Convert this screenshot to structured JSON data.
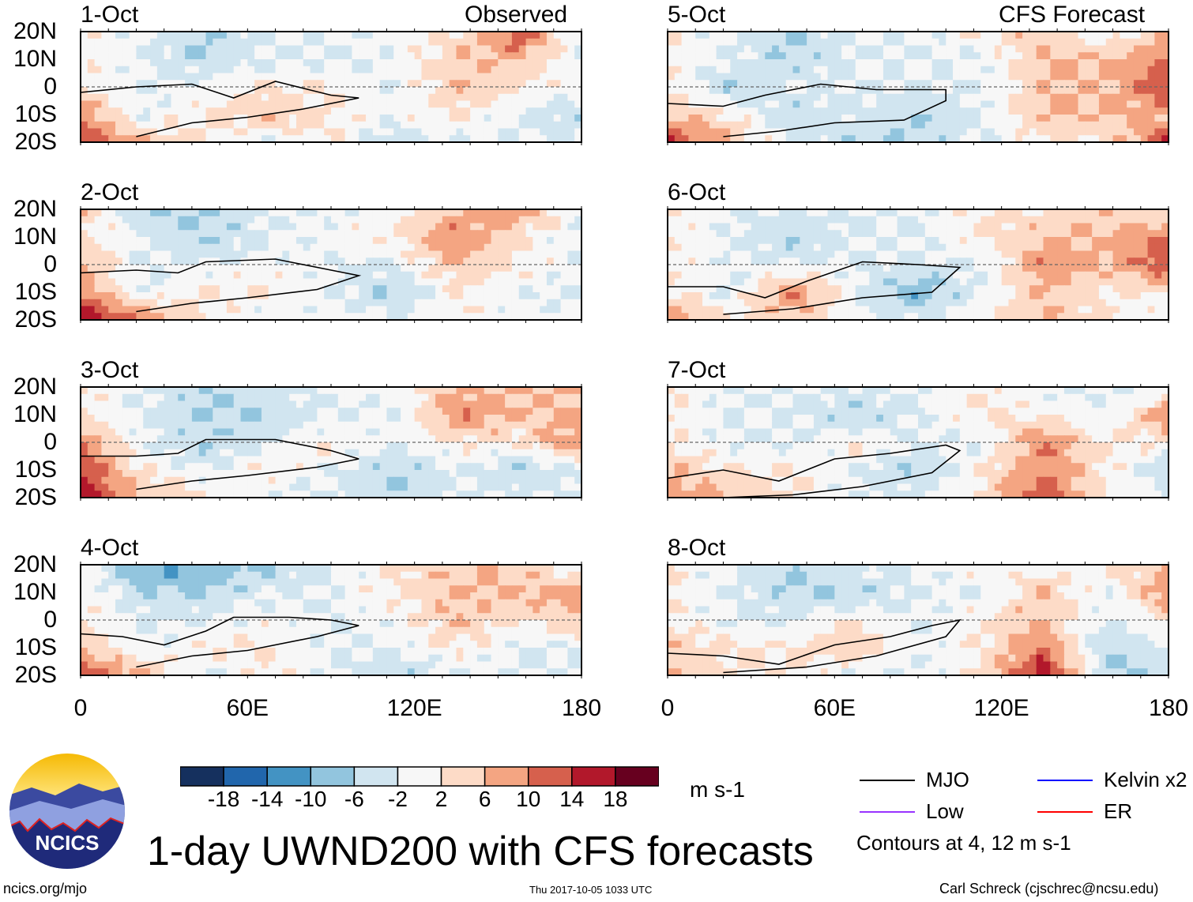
{
  "labels": {
    "observed": "Observed",
    "forecast": "CFS Forecast",
    "units": "m s-1",
    "title": "1-day UWND200 with CFS forecasts",
    "url": "ncics.org/mjo",
    "timestamp": "Thu 2017-10-05 1033 UTC",
    "author": "Carl Schreck (cjschrec@ncsu.edu)",
    "logo_text": "NCICS",
    "contour_note": "Contours at 4, 12 m s-1"
  },
  "legend": [
    {
      "label": "MJO",
      "color": "#000000"
    },
    {
      "label": "Kelvin x2",
      "color": "#0000ff"
    },
    {
      "label": "Low",
      "color": "#9933ff"
    },
    {
      "label": "ER",
      "color": "#ff0000"
    }
  ],
  "chart_data": {
    "type": "heatmap",
    "title": "1-day UWND200 with CFS forecasts",
    "units": "m s-1",
    "lat_labels": [
      "20N",
      "10N",
      "0",
      "10S",
      "20S"
    ],
    "lat_values": [
      20,
      10,
      0,
      -10,
      -20
    ],
    "lon_labels": [
      "0",
      "60E",
      "120E",
      "180"
    ],
    "lon_values": [
      0,
      22.5,
      45,
      67.5,
      90,
      112.5,
      135,
      157.5,
      180
    ],
    "xlim": [
      0,
      180
    ],
    "ylim": [
      -20,
      20
    ],
    "colorbar": {
      "ticks": [
        "-18",
        "-14",
        "-10",
        "-6",
        "-2",
        "2",
        "6",
        "10",
        "14",
        "18"
      ],
      "bounds": [
        -18,
        -14,
        -10,
        -6,
        -2,
        2,
        6,
        10,
        14,
        18
      ],
      "colors": [
        "#15305e",
        "#2166ac",
        "#4393c3",
        "#92c5de",
        "#d1e5f0",
        "#f7f7f7",
        "#fddbc7",
        "#f4a582",
        "#d6604d",
        "#b2182b",
        "#67001f"
      ]
    },
    "panels": [
      {
        "date": "1-Oct",
        "col": 0,
        "row": 0,
        "grid": [
          [
            2,
            -2,
            -6,
            -2,
            -2,
            0,
            2,
            14,
            -2
          ],
          [
            2,
            -2,
            -6,
            -2,
            -2,
            -2,
            6,
            6,
            -2
          ],
          [
            2,
            -2,
            0,
            2,
            2,
            -2,
            6,
            2,
            0
          ],
          [
            10,
            -2,
            2,
            6,
            2,
            0,
            2,
            -2,
            -6
          ],
          [
            14,
            6,
            2,
            -2,
            2,
            -6,
            -2,
            -2,
            -2
          ]
        ],
        "mjo": [
          [
            0,
            -2
          ],
          [
            20,
            0
          ],
          [
            40,
            1
          ],
          [
            55,
            -4
          ],
          [
            70,
            2
          ],
          [
            90,
            -3
          ],
          [
            100,
            -4
          ],
          [
            80,
            -8
          ],
          [
            60,
            -11
          ],
          [
            40,
            -13
          ],
          [
            20,
            -18
          ]
        ]
      },
      {
        "date": "2-Oct",
        "col": 0,
        "row": 1,
        "grid": [
          [
            6,
            -6,
            -6,
            -2,
            -2,
            0,
            6,
            10,
            -2
          ],
          [
            2,
            -2,
            -6,
            -2,
            0,
            2,
            10,
            2,
            -2
          ],
          [
            6,
            -2,
            -2,
            0,
            -2,
            -2,
            6,
            2,
            -2
          ],
          [
            10,
            -2,
            2,
            2,
            -2,
            -6,
            2,
            -2,
            -2
          ],
          [
            18,
            10,
            2,
            -2,
            0,
            -2,
            2,
            0,
            -2
          ]
        ],
        "mjo": [
          [
            0,
            -3
          ],
          [
            20,
            -2
          ],
          [
            35,
            -3
          ],
          [
            45,
            1
          ],
          [
            70,
            2
          ],
          [
            90,
            -2
          ],
          [
            100,
            -4
          ],
          [
            85,
            -9
          ],
          [
            60,
            -12
          ],
          [
            40,
            -14
          ],
          [
            20,
            -17
          ]
        ]
      },
      {
        "date": "3-Oct",
        "col": 0,
        "row": 2,
        "grid": [
          [
            2,
            -2,
            -6,
            -2,
            -2,
            0,
            6,
            6,
            6
          ],
          [
            2,
            -2,
            -6,
            -6,
            -2,
            -2,
            10,
            6,
            6
          ],
          [
            10,
            -2,
            -6,
            -2,
            2,
            -2,
            2,
            2,
            10
          ],
          [
            14,
            2,
            -2,
            2,
            -2,
            -6,
            -2,
            -6,
            -2
          ],
          [
            18,
            6,
            2,
            -2,
            -2,
            -6,
            -2,
            -2,
            -2
          ]
        ],
        "mjo": [
          [
            0,
            -5
          ],
          [
            20,
            -5
          ],
          [
            35,
            -4
          ],
          [
            45,
            1
          ],
          [
            70,
            1
          ],
          [
            90,
            -3
          ],
          [
            100,
            -6
          ],
          [
            85,
            -9
          ],
          [
            60,
            -12
          ],
          [
            40,
            -14
          ],
          [
            20,
            -17
          ]
        ]
      },
      {
        "date": "4-Oct",
        "col": 0,
        "row": 3,
        "grid": [
          [
            0,
            -10,
            -10,
            -6,
            -2,
            2,
            6,
            6,
            -2
          ],
          [
            2,
            -6,
            -6,
            -2,
            -2,
            2,
            6,
            6,
            10
          ],
          [
            2,
            -2,
            -2,
            0,
            -2,
            0,
            6,
            2,
            6
          ],
          [
            6,
            -2,
            2,
            2,
            -2,
            -2,
            2,
            -2,
            -2
          ],
          [
            14,
            6,
            -2,
            2,
            -2,
            -6,
            -2,
            -2,
            -2
          ]
        ],
        "mjo": [
          [
            0,
            -5
          ],
          [
            15,
            -6
          ],
          [
            30,
            -9
          ],
          [
            45,
            -4
          ],
          [
            55,
            1
          ],
          [
            75,
            1
          ],
          [
            90,
            0
          ],
          [
            100,
            -2
          ],
          [
            85,
            -6
          ],
          [
            60,
            -11
          ],
          [
            40,
            -13
          ],
          [
            20,
            -17
          ]
        ]
      },
      {
        "date": "5-Oct",
        "col": 1,
        "row": 0,
        "grid": [
          [
            2,
            -2,
            -6,
            -2,
            -2,
            2,
            6,
            -2,
            6
          ],
          [
            2,
            -2,
            -6,
            -2,
            -2,
            -2,
            6,
            6,
            10
          ],
          [
            2,
            -6,
            -2,
            -2,
            -2,
            -2,
            6,
            6,
            14
          ],
          [
            6,
            2,
            -6,
            -2,
            -6,
            -2,
            6,
            6,
            6
          ],
          [
            14,
            6,
            -2,
            -6,
            -6,
            -2,
            2,
            2,
            14
          ]
        ],
        "mjo": [
          [
            0,
            -6
          ],
          [
            20,
            -7
          ],
          [
            35,
            -3
          ],
          [
            55,
            1
          ],
          [
            75,
            -1
          ],
          [
            100,
            -1
          ],
          [
            100,
            -5
          ],
          [
            85,
            -12
          ],
          [
            60,
            -13
          ],
          [
            40,
            -16
          ],
          [
            20,
            -18
          ]
        ]
      },
      {
        "date": "6-Oct",
        "col": 1,
        "row": 1,
        "grid": [
          [
            2,
            -2,
            -2,
            -2,
            -2,
            2,
            2,
            6,
            2
          ],
          [
            2,
            -2,
            -6,
            -2,
            -2,
            2,
            6,
            6,
            10
          ],
          [
            2,
            -2,
            -2,
            -2,
            -2,
            -2,
            10,
            6,
            14
          ],
          [
            2,
            -2,
            10,
            -2,
            -10,
            -2,
            6,
            2,
            2
          ],
          [
            10,
            2,
            6,
            -2,
            -2,
            2,
            6,
            2,
            -2
          ]
        ],
        "mjo": [
          [
            0,
            -8
          ],
          [
            20,
            -8
          ],
          [
            35,
            -12
          ],
          [
            50,
            -6
          ],
          [
            70,
            1
          ],
          [
            90,
            0
          ],
          [
            105,
            -1
          ],
          [
            95,
            -10
          ],
          [
            70,
            -12
          ],
          [
            45,
            -16
          ],
          [
            20,
            -18
          ]
        ]
      },
      {
        "date": "7-Oct",
        "col": 1,
        "row": 2,
        "grid": [
          [
            2,
            -2,
            -2,
            -2,
            -2,
            2,
            -2,
            -2,
            -2
          ],
          [
            2,
            -2,
            -2,
            -6,
            -2,
            2,
            2,
            -2,
            10
          ],
          [
            2,
            -2,
            -2,
            2,
            -2,
            -2,
            10,
            2,
            2
          ],
          [
            6,
            2,
            2,
            -2,
            -6,
            2,
            10,
            2,
            -6
          ],
          [
            10,
            6,
            2,
            -2,
            -2,
            2,
            14,
            2,
            -2
          ]
        ],
        "mjo": [
          [
            0,
            -13
          ],
          [
            20,
            -10
          ],
          [
            40,
            -14
          ],
          [
            60,
            -6
          ],
          [
            80,
            -4
          ],
          [
            100,
            -1
          ],
          [
            105,
            -3
          ],
          [
            95,
            -11
          ],
          [
            70,
            -16
          ],
          [
            45,
            -19
          ],
          [
            20,
            -20
          ]
        ]
      },
      {
        "date": "8-Oct",
        "col": 1,
        "row": 3,
        "grid": [
          [
            2,
            -2,
            -6,
            -2,
            -2,
            2,
            -2,
            2,
            6
          ],
          [
            2,
            -2,
            -6,
            -6,
            -2,
            -2,
            6,
            -2,
            10
          ],
          [
            2,
            -2,
            -2,
            2,
            -2,
            2,
            6,
            -2,
            2
          ],
          [
            6,
            2,
            2,
            6,
            -2,
            2,
            10,
            -6,
            -2
          ],
          [
            6,
            2,
            2,
            -2,
            -2,
            2,
            18,
            -6,
            -6
          ]
        ],
        "mjo": [
          [
            0,
            -12
          ],
          [
            20,
            -13
          ],
          [
            40,
            -16
          ],
          [
            60,
            -9
          ],
          [
            80,
            -6
          ],
          [
            95,
            -2
          ],
          [
            105,
            0
          ],
          [
            100,
            -6
          ],
          [
            75,
            -13
          ],
          [
            50,
            -17
          ],
          [
            20,
            -19
          ]
        ]
      }
    ]
  }
}
